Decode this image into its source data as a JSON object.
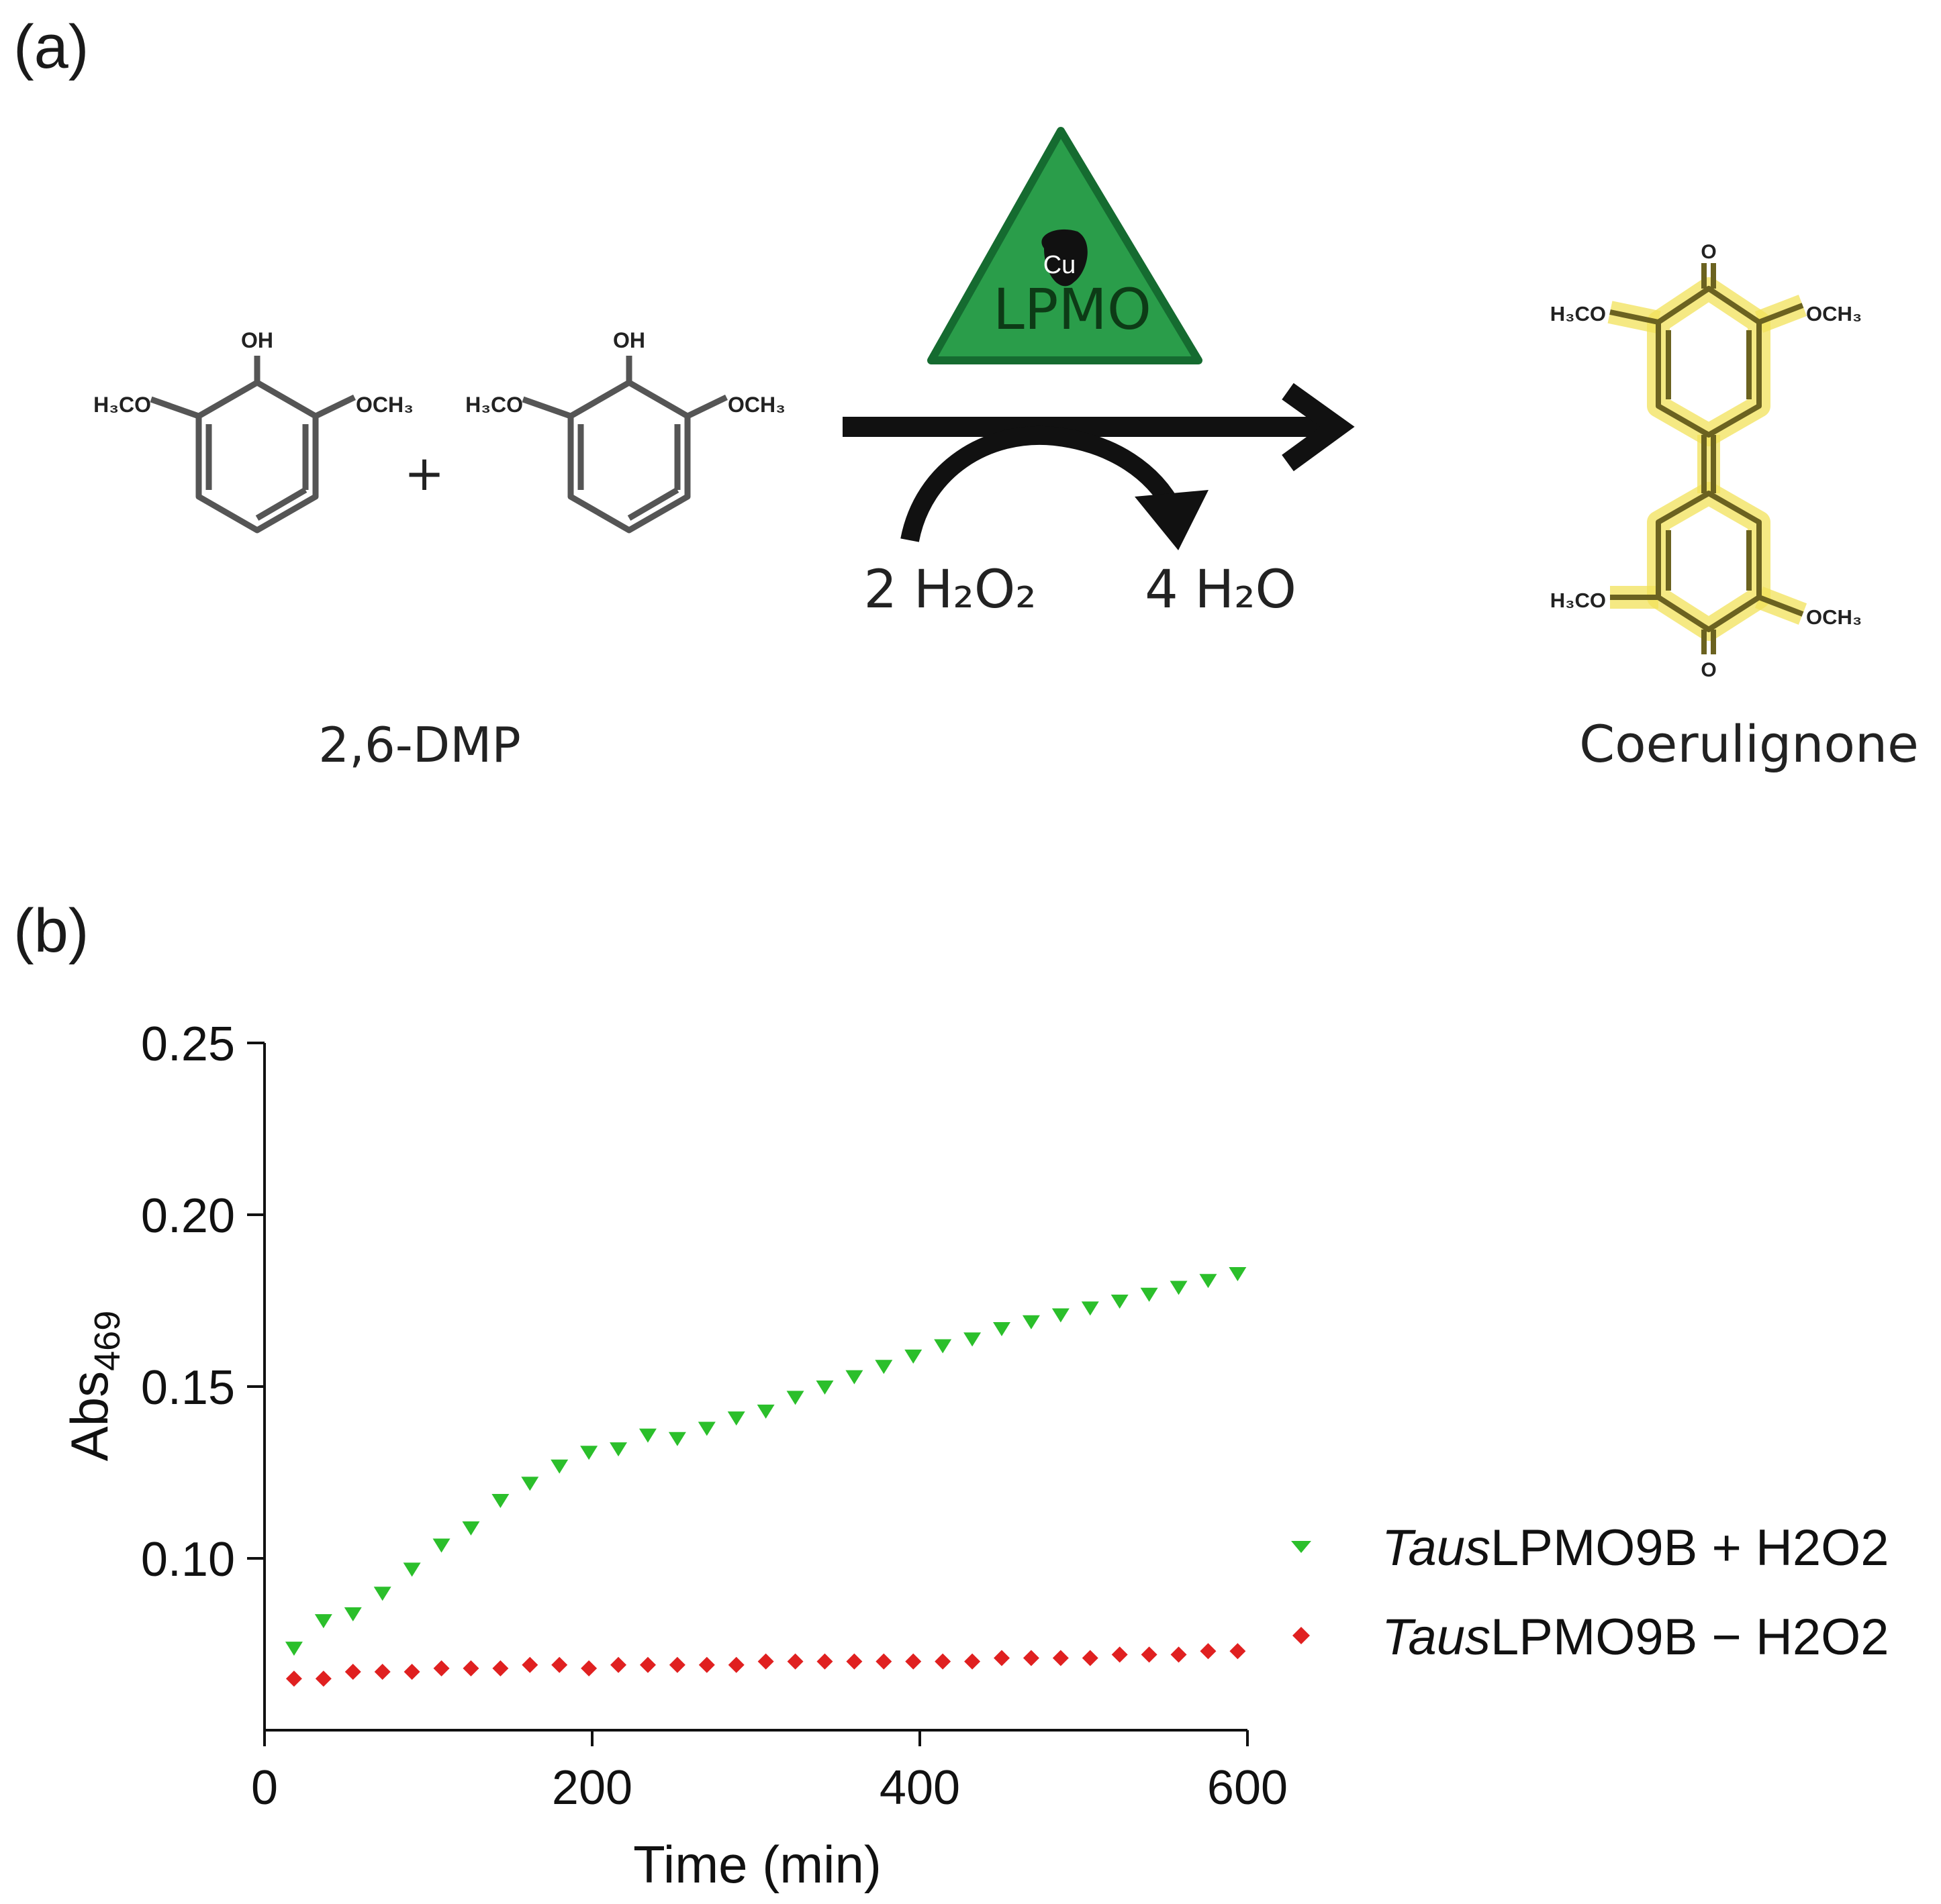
{
  "panel_a": {
    "label": "(a)",
    "substrate_oh_label": "OH",
    "substrate_left_group": "H₃CO",
    "substrate_right_group": "OCH₃",
    "plus": "+",
    "substrate_name": "2,6-DMP",
    "enzyme_label": "LPMO",
    "copper_label": "Cu",
    "cosubstrate": "2 H₂O₂",
    "coproduct": "4 H₂O",
    "product_o_label": "O",
    "product_name": "Coerulignone",
    "colors": {
      "enzyme_fill": "#2a9d4a",
      "enzyme_border": "#156b30",
      "highlight": "#f2e15a"
    }
  },
  "panel_b": {
    "label": "(b)",
    "chart_data": {
      "type": "scatter",
      "xlabel": "Time (min)",
      "ylabel": "Abs",
      "ylabel_subscript": "469",
      "xlim": [
        0,
        600
      ],
      "ylim": [
        0.05,
        0.25
      ],
      "xticks": [
        "0",
        "200",
        "400",
        "600"
      ],
      "yticks": [
        "0.10",
        "0.15",
        "0.20",
        "0.25"
      ],
      "grid": false,
      "legend_position": "right",
      "series": [
        {
          "name_italic": "Taus",
          "name_rest": "LPMO9B + H2O2",
          "marker": "triangle-down",
          "color": "#2bbf2b",
          "x": [
            18,
            36,
            54,
            72,
            90,
            108,
            126,
            144,
            162,
            180,
            198,
            216,
            234,
            252,
            270,
            288,
            306,
            324,
            342,
            360,
            378,
            396,
            414,
            432,
            450,
            468,
            486,
            504,
            522,
            540,
            558,
            576,
            594
          ],
          "y": [
            0.074,
            0.082,
            0.084,
            0.09,
            0.097,
            0.104,
            0.109,
            0.117,
            0.122,
            0.127,
            0.131,
            0.132,
            0.136,
            0.135,
            0.138,
            0.141,
            0.143,
            0.147,
            0.15,
            0.153,
            0.156,
            0.159,
            0.162,
            0.164,
            0.167,
            0.169,
            0.171,
            0.173,
            0.175,
            0.177,
            0.179,
            0.181,
            0.183
          ]
        },
        {
          "name_italic": "Taus",
          "name_rest": "LPMO9B − H2O2",
          "marker": "diamond",
          "color": "#e02020",
          "x": [
            18,
            36,
            54,
            72,
            90,
            108,
            126,
            144,
            162,
            180,
            198,
            216,
            234,
            252,
            270,
            288,
            306,
            324,
            342,
            360,
            378,
            396,
            414,
            432,
            450,
            468,
            486,
            504,
            522,
            540,
            558,
            576,
            594
          ],
          "y": [
            0.065,
            0.065,
            0.067,
            0.067,
            0.067,
            0.068,
            0.068,
            0.068,
            0.069,
            0.069,
            0.068,
            0.069,
            0.069,
            0.069,
            0.069,
            0.069,
            0.07,
            0.07,
            0.07,
            0.07,
            0.07,
            0.07,
            0.07,
            0.07,
            0.071,
            0.071,
            0.071,
            0.071,
            0.072,
            0.072,
            0.072,
            0.073,
            0.073
          ]
        }
      ]
    }
  }
}
